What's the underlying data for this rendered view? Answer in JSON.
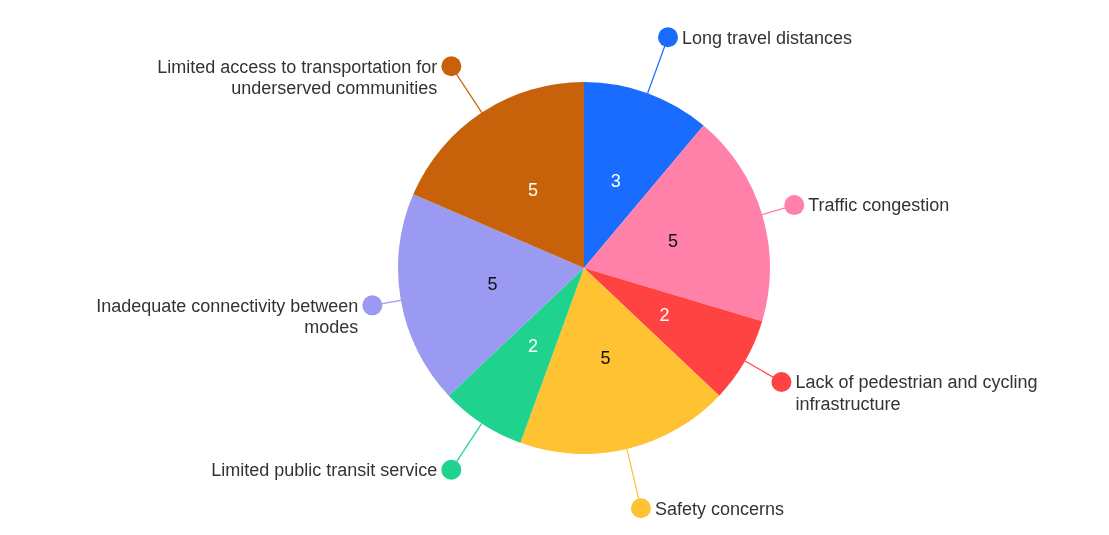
{
  "chart_data": {
    "type": "pie",
    "categories": [
      "Long travel distances",
      "Traffic congestion",
      "Lack of pedestrian and cycling infrastructure",
      "Safety concerns",
      "Limited public transit service",
      "Inadequate connectivity between modes",
      "Limited access to transportation for underserved communities"
    ],
    "values": [
      3,
      5,
      2,
      5,
      2,
      5,
      5
    ],
    "colors": [
      "#1a6cff",
      "#ff80a8",
      "#ff4242",
      "#ffc233",
      "#1fd38e",
      "#9a9af2",
      "#c8620a"
    ],
    "data_labels": true,
    "legend": "right"
  }
}
